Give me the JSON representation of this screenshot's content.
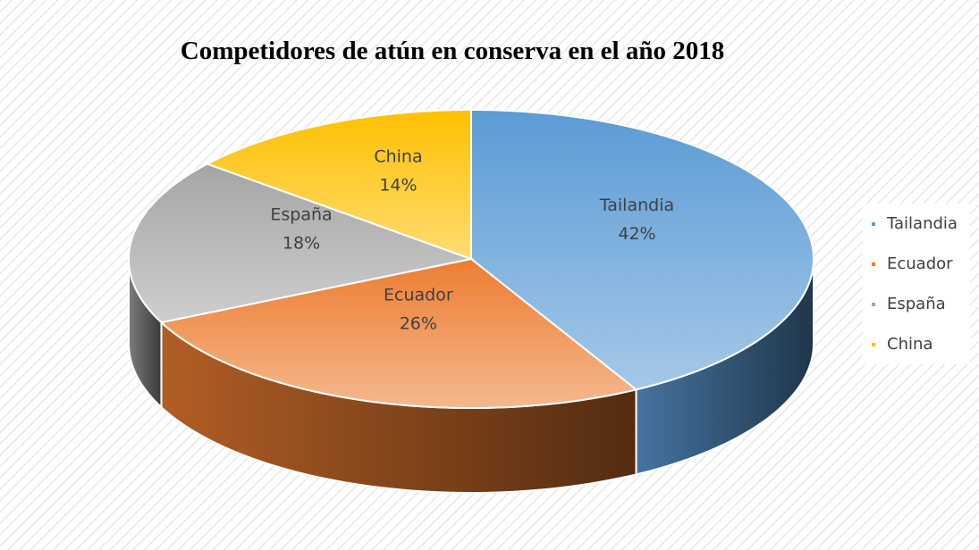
{
  "chart_data": {
    "type": "pie",
    "title": "Competidores de atún en conserva en el año 2018",
    "categories": [
      "Tailandia",
      "Ecuador",
      "España",
      "China"
    ],
    "values": [
      42,
      26,
      18,
      14
    ],
    "value_labels": [
      "42%",
      "26%",
      "18%",
      "14%"
    ],
    "colors": [
      "#5b9bd5",
      "#ed7d31",
      "#a5a5a5",
      "#ffc000"
    ],
    "legend": "right"
  }
}
